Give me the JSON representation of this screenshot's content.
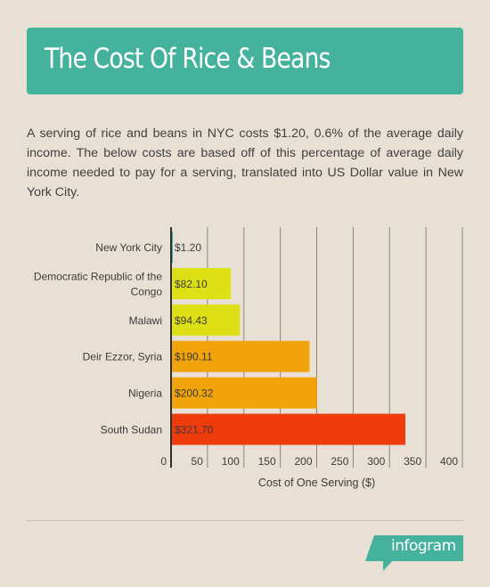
{
  "title": "The Cost Of Rice & Beans",
  "description": "A serving of rice and beans in NYC costs $1.20, 0.6% of the average daily income. The below costs are based off of this percentage of average daily income needed to pay for a serving, translated into US Dollar value in New York City.",
  "chart_data": {
    "type": "bar",
    "orientation": "horizontal",
    "categories": [
      "New York City",
      "Democratic Republic of the Congo",
      "Malawi",
      "Deir Ezzor, Syria",
      "Nigeria",
      "South Sudan"
    ],
    "category_lines": [
      [
        "New York City"
      ],
      [
        "Democratic Republic of the",
        "Congo"
      ],
      [
        "Malawi"
      ],
      [
        "Deir Ezzor, Syria"
      ],
      [
        "Nigeria"
      ],
      [
        "South Sudan"
      ]
    ],
    "values": [
      1.2,
      82.1,
      94.43,
      190.11,
      200.32,
      321.7
    ],
    "value_labels": [
      "$1.20",
      "$82.10",
      "$94.43",
      "$190.11",
      "$200.32",
      "$321.70"
    ],
    "bar_colors": [
      "#45b29d",
      "#dde014",
      "#dde014",
      "#f0a30a",
      "#f0a30a",
      "#f03c0c"
    ],
    "xlabel": "Cost of One Serving ($)",
    "ylabel": "",
    "xlim": [
      0,
      400
    ],
    "ticks": [
      0,
      50,
      100,
      150,
      200,
      250,
      300,
      350,
      400
    ],
    "grid": true,
    "legend": "none"
  },
  "brand": {
    "name": "infogram",
    "color": "#45b29d"
  },
  "colors": {
    "background": "#e8e0d4",
    "accent": "#45b29d",
    "text": "#404040"
  }
}
